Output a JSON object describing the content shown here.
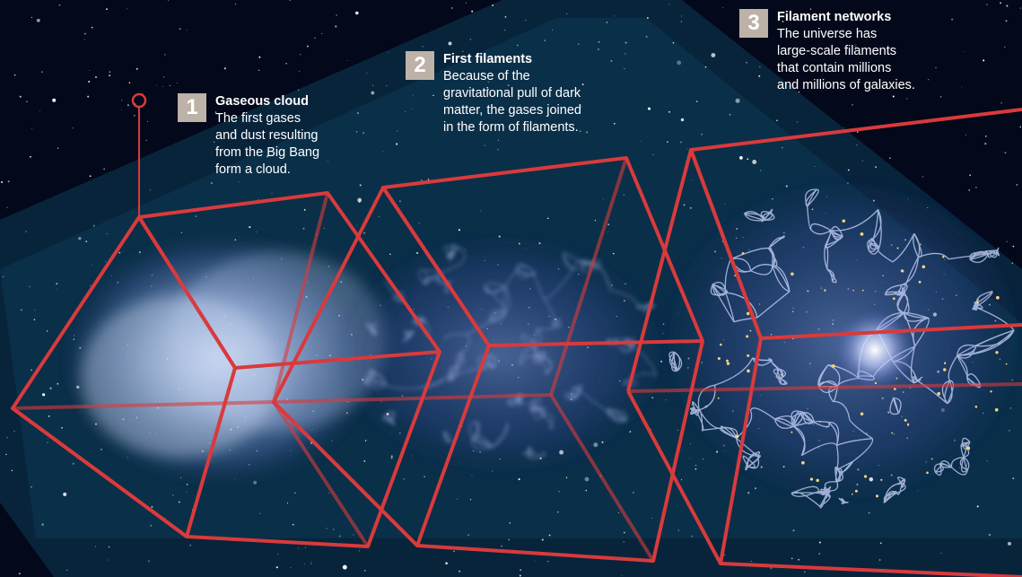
{
  "colors": {
    "background": "#03081a",
    "beam": "#0d3d58",
    "cube_edge": "#d93a3c",
    "badge": "#bdb2a8",
    "text": "#ffffff",
    "cloud": "#c9d9f2",
    "filament": "#b8c8f8",
    "galaxy": "#f3d37a"
  },
  "steps": [
    {
      "number": "1",
      "title": "Gaseous cloud",
      "lines": [
        "The first gases",
        "and dust resulting",
        "from the Big Bang",
        "form a cloud."
      ]
    },
    {
      "number": "2",
      "title": "First filaments",
      "lines": [
        "Because of the",
        "gravitational pull of dark",
        "matter, the gases joined",
        "in the form of filaments."
      ]
    },
    {
      "number": "3",
      "title": "Filament networks",
      "lines": [
        "The universe has",
        "large-scale filaments",
        "that contain millions",
        "and millions of galaxies."
      ]
    }
  ]
}
